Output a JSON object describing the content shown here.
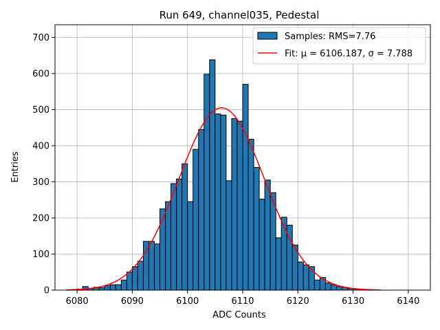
{
  "chart_data": {
    "type": "bar",
    "title": "Run 649, channel035, Pedestal",
    "xlabel": "ADC Counts",
    "ylabel": "Entries",
    "xlim": [
      6076,
      6144
    ],
    "ylim": [
      0,
      735
    ],
    "xticks": [
      6080,
      6090,
      6100,
      6110,
      6120,
      6130,
      6140
    ],
    "yticks": [
      0,
      100,
      200,
      300,
      400,
      500,
      600,
      700
    ],
    "grid": true,
    "legend_position": "top-right",
    "histogram": {
      "name": "Samples: RMS=7.76",
      "color": "#1f77b4",
      "edge_color": "#000000",
      "bin_width": 1,
      "bin_start": 6080,
      "counts": [
        3,
        10,
        5,
        8,
        7,
        12,
        15,
        15,
        28,
        50,
        65,
        80,
        135,
        135,
        128,
        225,
        245,
        295,
        308,
        350,
        245,
        390,
        445,
        598,
        638,
        488,
        485,
        303,
        475,
        468,
        570,
        418,
        340,
        252,
        305,
        270,
        145,
        202,
        180,
        125,
        78,
        70,
        65,
        28,
        35,
        20,
        15,
        10,
        8,
        5,
        3,
        3
      ]
    },
    "fit": {
      "name": "Fit: μ = 6106.187, σ = 7.788",
      "color": "#ff0000",
      "mu": 6106.187,
      "sigma": 7.788,
      "amplitude": 505,
      "x_range": [
        6078,
        6135
      ]
    }
  }
}
